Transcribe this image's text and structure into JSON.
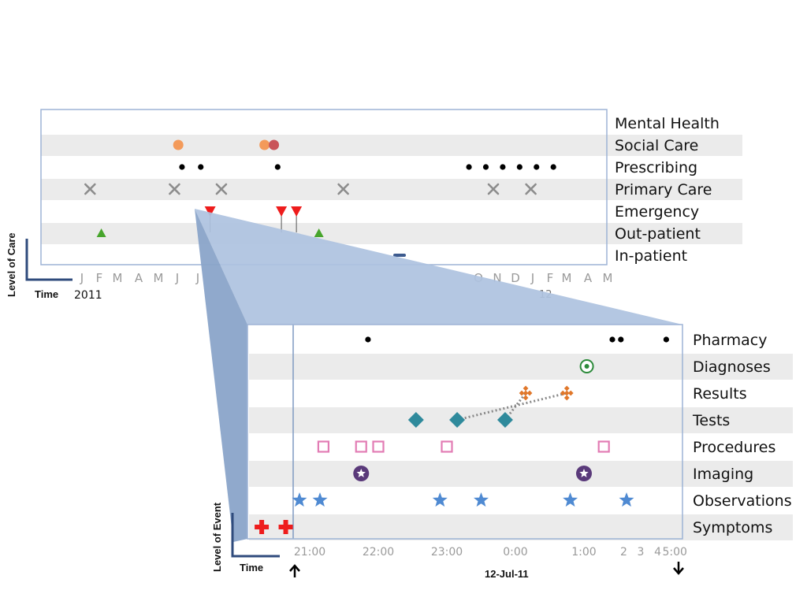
{
  "colors": {
    "band": "#ebebeb",
    "frame": "#9db3d5",
    "projection": "#a9bedd",
    "projection_dark": "#7f9ac2",
    "axis": "#2f4b7c",
    "black_dot": "#000000",
    "orange": "#f39a5a",
    "rust": "#c9545a",
    "gray_x": "#8c8c8c",
    "red": "#ee1c1c",
    "green": "#47a52c",
    "navy_dash": "#3c5a8e",
    "green_ring": "#2c8a3a",
    "result_orange": "#e0772a",
    "teal": "#2f8a9c",
    "pink": "#e27cb4",
    "purple": "#5a3a7a",
    "star_blue": "#4f8ad2"
  },
  "overview": {
    "y_axis_title": "Level of Care",
    "x_axis_title": "Time",
    "year_label": "2011",
    "partial_year_label": "12",
    "lanes": [
      {
        "label": "Mental Health",
        "band": false
      },
      {
        "label": "Social Care",
        "band": true
      },
      {
        "label": "Prescribing",
        "band": false
      },
      {
        "label": "Primary Care",
        "band": true
      },
      {
        "label": "Emergency",
        "band": false
      },
      {
        "label": "Out-patient",
        "band": true
      },
      {
        "label": "In-patient",
        "band": false
      }
    ],
    "month_ticks": [
      "J",
      "F",
      "M",
      "A",
      "M",
      "J",
      "J",
      "O",
      "N",
      "D",
      "J",
      "F",
      "M",
      "A",
      "M"
    ],
    "events": [
      {
        "lane": "Social Care",
        "shape": "circle-orange",
        "month": 6.1
      },
      {
        "lane": "Social Care",
        "shape": "circle-orange",
        "month": 10.7
      },
      {
        "lane": "Social Care",
        "shape": "circle-rust",
        "month": 11.2
      },
      {
        "lane": "Prescribing",
        "shape": "dot",
        "month": 6.3
      },
      {
        "lane": "Prescribing",
        "shape": "dot",
        "month": 7.3
      },
      {
        "lane": "Prescribing",
        "shape": "dot",
        "month": 11.4
      },
      {
        "lane": "Prescribing",
        "shape": "dot",
        "month": 21.6
      },
      {
        "lane": "Prescribing",
        "shape": "dot",
        "month": 22.5
      },
      {
        "lane": "Prescribing",
        "shape": "dot",
        "month": 23.4
      },
      {
        "lane": "Prescribing",
        "shape": "dot",
        "month": 24.3
      },
      {
        "lane": "Prescribing",
        "shape": "dot",
        "month": 25.2
      },
      {
        "lane": "Prescribing",
        "shape": "dot",
        "month": 26.1
      },
      {
        "lane": "Primary Care",
        "shape": "x",
        "month": 1.4
      },
      {
        "lane": "Primary Care",
        "shape": "x",
        "month": 5.9
      },
      {
        "lane": "Primary Care",
        "shape": "x",
        "month": 8.4
      },
      {
        "lane": "Primary Care",
        "shape": "x",
        "month": 14.9
      },
      {
        "lane": "Primary Care",
        "shape": "x",
        "month": 22.9
      },
      {
        "lane": "Primary Care",
        "shape": "x",
        "month": 24.9
      },
      {
        "lane": "Emergency",
        "shape": "triangle-down",
        "month": 7.8
      },
      {
        "lane": "Emergency",
        "shape": "triangle-down",
        "month": 11.6
      },
      {
        "lane": "Emergency",
        "shape": "triangle-down",
        "month": 12.4
      },
      {
        "lane": "Out-patient",
        "shape": "triangle-up",
        "month": 2.0
      },
      {
        "lane": "Out-patient",
        "shape": "triangle-up",
        "month": 13.6
      },
      {
        "lane": "In-patient",
        "shape": "dash",
        "month": 17.9
      }
    ]
  },
  "detail": {
    "y_axis_title": "Level of Event",
    "x_axis_title": "Time",
    "date_label": "12-Jul-11",
    "lanes": [
      {
        "label": "Pharmacy",
        "band": false
      },
      {
        "label": "Diagnoses",
        "band": true
      },
      {
        "label": "Results",
        "band": false
      },
      {
        "label": "Tests",
        "band": true
      },
      {
        "label": "Procedures",
        "band": false
      },
      {
        "label": "Imaging",
        "band": true
      },
      {
        "label": "Observations",
        "band": false
      },
      {
        "label": "Symptoms",
        "band": true
      }
    ],
    "time_ticks": [
      {
        "label": "21:00",
        "t": 21.0
      },
      {
        "label": "22:00",
        "t": 22.0
      },
      {
        "label": "23:00",
        "t": 23.0
      },
      {
        "label": "0:00",
        "t": 24.0
      },
      {
        "label": "1:00",
        "t": 25.0
      },
      {
        "label": "2",
        "t": 25.7
      },
      {
        "label": "3",
        "t": 26.0
      },
      {
        "label": "4",
        "t": 26.3
      },
      {
        "label": "5:00",
        "t": 26.6
      }
    ],
    "events": [
      {
        "lane": "Pharmacy",
        "shape": "dot",
        "t": 21.85
      },
      {
        "lane": "Pharmacy",
        "shape": "dot",
        "t": 25.5
      },
      {
        "lane": "Pharmacy",
        "shape": "dot",
        "t": 25.65
      },
      {
        "lane": "Pharmacy",
        "shape": "dot",
        "t": 26.45
      },
      {
        "lane": "Diagnoses",
        "shape": "ring",
        "t": 25.05
      },
      {
        "lane": "Results",
        "shape": "cluster",
        "t": 24.15
      },
      {
        "lane": "Results",
        "shape": "cluster",
        "t": 24.75
      },
      {
        "lane": "Tests",
        "shape": "diamond",
        "t": 22.55
      },
      {
        "lane": "Tests",
        "shape": "diamond",
        "t": 23.15
      },
      {
        "lane": "Tests",
        "shape": "diamond",
        "t": 23.85
      },
      {
        "lane": "Procedures",
        "shape": "square",
        "t": 21.2
      },
      {
        "lane": "Procedures",
        "shape": "square",
        "t": 21.75
      },
      {
        "lane": "Procedures",
        "shape": "square",
        "t": 22.0
      },
      {
        "lane": "Procedures",
        "shape": "square",
        "t": 23.0
      },
      {
        "lane": "Procedures",
        "shape": "square",
        "t": 25.35
      },
      {
        "lane": "Imaging",
        "shape": "star-circle",
        "t": 21.75
      },
      {
        "lane": "Imaging",
        "shape": "star-circle",
        "t": 25.0
      },
      {
        "lane": "Observations",
        "shape": "star",
        "t": 20.85
      },
      {
        "lane": "Observations",
        "shape": "star",
        "t": 21.15
      },
      {
        "lane": "Observations",
        "shape": "star",
        "t": 22.9
      },
      {
        "lane": "Observations",
        "shape": "star",
        "t": 23.5
      },
      {
        "lane": "Observations",
        "shape": "star",
        "t": 24.8
      },
      {
        "lane": "Observations",
        "shape": "star",
        "t": 25.75
      },
      {
        "lane": "Symptoms",
        "shape": "cross",
        "t": 20.3
      },
      {
        "lane": "Symptoms",
        "shape": "cross",
        "t": 20.65
      }
    ],
    "links": [
      {
        "from": {
          "lane": "Tests",
          "t": 23.15
        },
        "to": {
          "lane": "Results",
          "t": 24.75
        }
      },
      {
        "from": {
          "lane": "Tests",
          "t": 23.85
        },
        "to": {
          "lane": "Results",
          "t": 24.15
        }
      }
    ]
  }
}
